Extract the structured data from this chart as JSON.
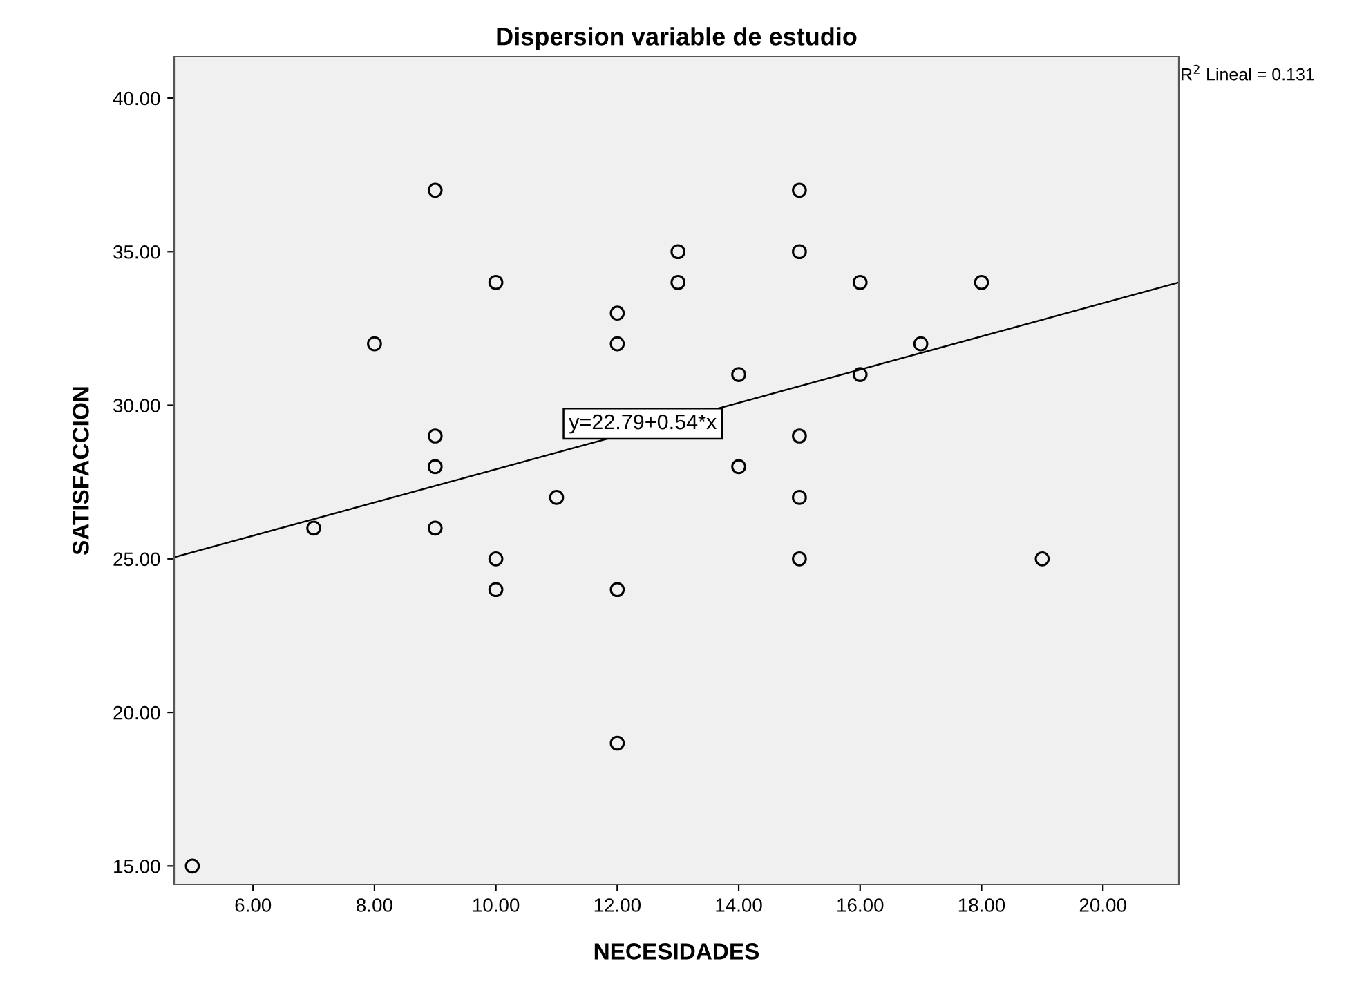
{
  "chart_data": {
    "type": "scatter",
    "title": "Dispersion variable de estudio",
    "xlabel": "NECESIDADES",
    "ylabel": "SATISFACCION",
    "x": [
      5,
      7,
      8,
      9,
      9,
      9,
      9,
      10,
      10,
      10,
      11,
      12,
      12,
      12,
      12,
      13,
      13,
      14,
      14,
      15,
      15,
      15,
      15,
      15,
      16,
      16,
      17,
      18,
      19
    ],
    "series": [
      {
        "type": "scatter",
        "color": "#000000",
        "marker": "circle",
        "values": [
          15,
          26,
          32,
          37,
          29,
          28,
          26,
          34,
          25,
          24,
          27,
          33,
          32,
          24,
          19,
          35,
          34,
          31,
          28,
          37,
          35,
          29,
          27,
          25,
          34,
          31,
          32,
          34,
          25
        ]
      },
      {
        "type": "line",
        "color": "#000000",
        "x": [
          4.7,
          21.25
        ],
        "values": [
          25.05,
          34.0
        ]
      }
    ],
    "annotations": [
      {
        "text": "y=22.79+0.54*x",
        "x": 12.42,
        "y": 29.4
      },
      "R$^{2}$ Lineal = 0.131"
    ],
    "xlim": [
      4.7,
      21.25
    ],
    "ylim": [
      14.4,
      41.35
    ],
    "xticks": [
      {
        "value": 6,
        "label": "6.00"
      },
      {
        "value": 8,
        "label": "8.00"
      },
      {
        "value": 10,
        "label": "10.00"
      },
      {
        "value": 12,
        "label": "12.00"
      },
      {
        "value": 14,
        "label": "14.00"
      },
      {
        "value": 16,
        "label": "16.00"
      },
      {
        "value": 18,
        "label": "18.00"
      },
      {
        "value": 20,
        "label": "20.00"
      }
    ],
    "yticks": [
      {
        "value": 15,
        "label": "15.00"
      },
      {
        "value": 20,
        "label": "20.00"
      },
      {
        "value": 25,
        "label": "25.00"
      },
      {
        "value": 30,
        "label": "30.00"
      },
      {
        "value": 35,
        "label": "35.00"
      },
      {
        "value": 40,
        "label": "40.00"
      }
    ],
    "grid": false,
    "legend": false
  }
}
